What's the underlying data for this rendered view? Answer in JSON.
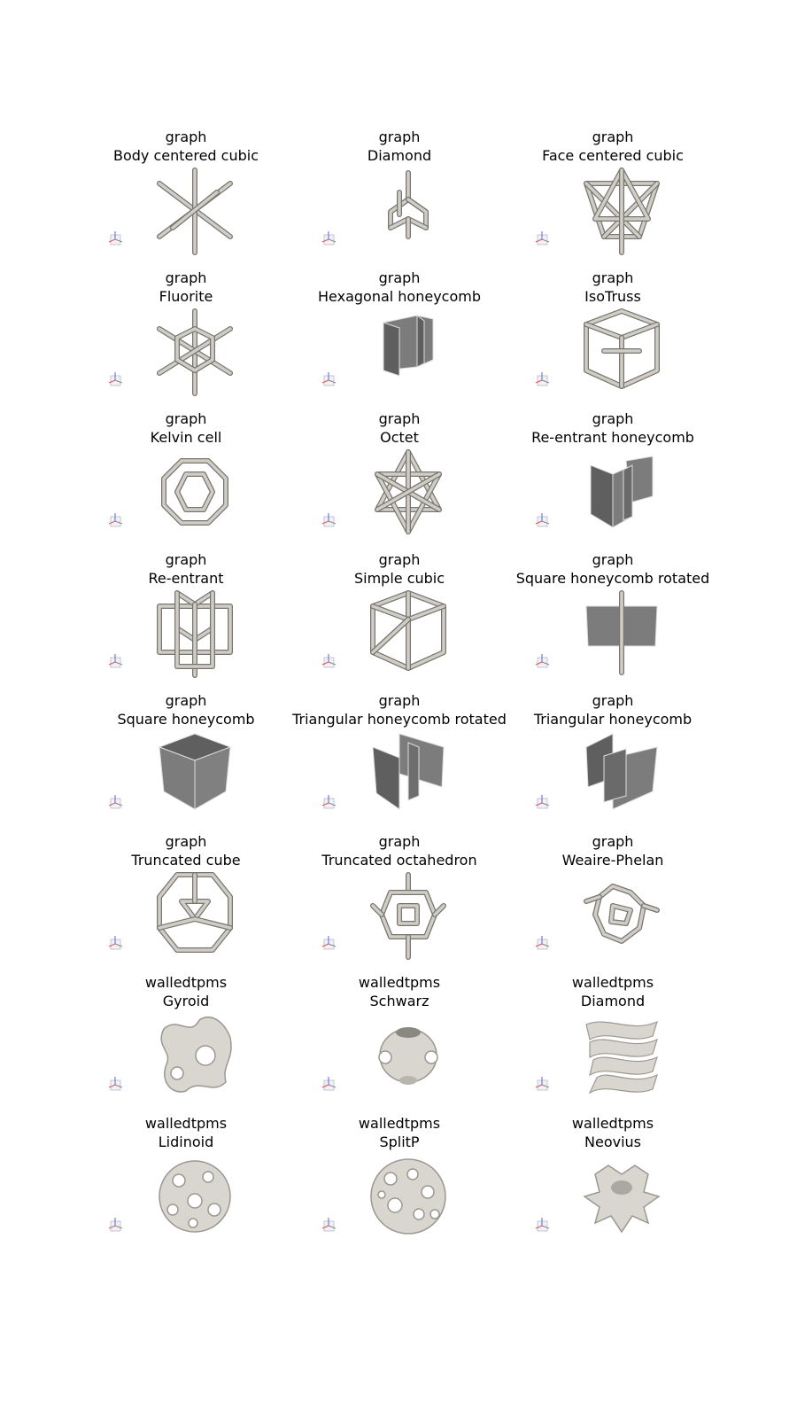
{
  "lattices": [
    {
      "family": "graph",
      "name": "Body centered cubic",
      "icon": "bcc-lattice-icon",
      "kind": "strut"
    },
    {
      "family": "graph",
      "name": "Diamond",
      "icon": "diamond-lattice-icon",
      "kind": "strut"
    },
    {
      "family": "graph",
      "name": "Face centered cubic",
      "icon": "fcc-lattice-icon",
      "kind": "strut"
    },
    {
      "family": "graph",
      "name": "Fluorite",
      "icon": "fluorite-lattice-icon",
      "kind": "strut"
    },
    {
      "family": "graph",
      "name": "Hexagonal honeycomb",
      "icon": "hexagonal-honeycomb-icon",
      "kind": "wall"
    },
    {
      "family": "graph",
      "name": "IsoTruss",
      "icon": "isotruss-lattice-icon",
      "kind": "strut"
    },
    {
      "family": "graph",
      "name": "Kelvin cell",
      "icon": "kelvin-cell-icon",
      "kind": "strut"
    },
    {
      "family": "graph",
      "name": "Octet",
      "icon": "octet-lattice-icon",
      "kind": "strut"
    },
    {
      "family": "graph",
      "name": "Re-entrant honeycomb",
      "icon": "reentrant-honeycomb-icon",
      "kind": "wall"
    },
    {
      "family": "graph",
      "name": "Re-entrant",
      "icon": "reentrant-lattice-icon",
      "kind": "strut"
    },
    {
      "family": "graph",
      "name": "Simple cubic",
      "icon": "simple-cubic-icon",
      "kind": "strut"
    },
    {
      "family": "graph",
      "name": "Square honeycomb rotated",
      "icon": "square-honeycomb-rotated-icon",
      "kind": "wall"
    },
    {
      "family": "graph",
      "name": "Square honeycomb",
      "icon": "square-honeycomb-icon",
      "kind": "wall"
    },
    {
      "family": "graph",
      "name": "Triangular honeycomb rotated",
      "icon": "triangular-honeycomb-rotated-icon",
      "kind": "wall"
    },
    {
      "family": "graph",
      "name": "Triangular honeycomb",
      "icon": "triangular-honeycomb-icon",
      "kind": "wall"
    },
    {
      "family": "graph",
      "name": "Truncated cube",
      "icon": "truncated-cube-icon",
      "kind": "strut"
    },
    {
      "family": "graph",
      "name": "Truncated octahedron",
      "icon": "truncated-octahedron-icon",
      "kind": "strut"
    },
    {
      "family": "graph",
      "name": "Weaire-Phelan",
      "icon": "weaire-phelan-icon",
      "kind": "strut"
    },
    {
      "family": "walledtpms",
      "name": "Gyroid",
      "icon": "gyroid-tpms-icon",
      "kind": "tpms"
    },
    {
      "family": "walledtpms",
      "name": "Schwarz",
      "icon": "schwarz-tpms-icon",
      "kind": "tpms"
    },
    {
      "family": "walledtpms",
      "name": "Diamond",
      "icon": "diamond-tpms-icon",
      "kind": "tpms"
    },
    {
      "family": "walledtpms",
      "name": "Lidinoid",
      "icon": "lidinoid-tpms-icon",
      "kind": "tpms"
    },
    {
      "family": "walledtpms",
      "name": "SplitP",
      "icon": "splitp-tpms-icon",
      "kind": "tpms"
    },
    {
      "family": "walledtpms",
      "name": "Neovius",
      "icon": "neovius-tpms-icon",
      "kind": "tpms"
    }
  ],
  "colors": {
    "strut": "#cfcdc6",
    "strut_edge": "#77756f",
    "wall": "#7c7c7c",
    "wall_dark": "#5f5f5f",
    "tpms": "#d8d6cf",
    "tpms_shade": "#9a9891"
  }
}
